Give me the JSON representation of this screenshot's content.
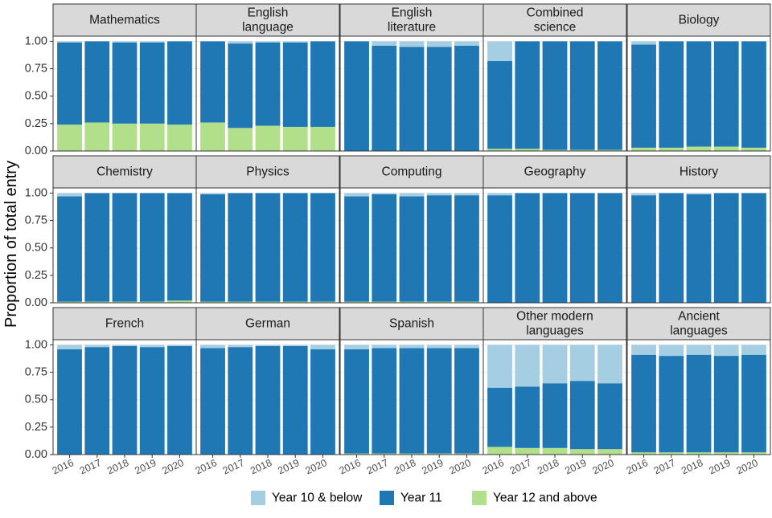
{
  "chart_data": {
    "type": "bar",
    "stacked": true,
    "facet_columns": 5,
    "ylabel": "Proportion of total entry",
    "xlabel": "",
    "ylim": [
      0,
      1
    ],
    "yticks": [
      "0.00",
      "0.25",
      "0.50",
      "0.75",
      "1.00"
    ],
    "ytick_values": [
      0,
      0.25,
      0.5,
      0.75,
      1
    ],
    "categories": [
      "2016",
      "2017",
      "2018",
      "2019",
      "2020"
    ],
    "legend": {
      "position": "bottom",
      "items": [
        {
          "name": "Year 10 & below",
          "color": "#a6cee3"
        },
        {
          "name": "Year 11",
          "color": "#1f78b4"
        },
        {
          "name": "Year 12 and above",
          "color": "#b2df8a"
        }
      ]
    },
    "stack_order_bottom_to_top": [
      "Year 12 and above",
      "Year 11",
      "Year 10 & below"
    ],
    "panels": [
      {
        "title": [
          "Mathematics"
        ],
        "series": {
          "Year 12 and above": [
            0.24,
            0.26,
            0.25,
            0.25,
            0.24
          ],
          "Year 11": [
            0.75,
            0.74,
            0.74,
            0.74,
            0.76
          ],
          "Year 10 & below": [
            0.01,
            0.0,
            0.01,
            0.01,
            0.0
          ]
        }
      },
      {
        "title": [
          "English",
          "language"
        ],
        "series": {
          "Year 12 and above": [
            0.26,
            0.21,
            0.23,
            0.22,
            0.22
          ],
          "Year 11": [
            0.74,
            0.77,
            0.76,
            0.77,
            0.78
          ],
          "Year 10 & below": [
            0.0,
            0.02,
            0.01,
            0.01,
            0.0
          ]
        }
      },
      {
        "title": [
          "English",
          "literature"
        ],
        "series": {
          "Year 12 and above": [
            0.0,
            0.0,
            0.0,
            0.0,
            0.0
          ],
          "Year 11": [
            1.0,
            0.96,
            0.95,
            0.95,
            0.96
          ],
          "Year 10 & below": [
            0.0,
            0.04,
            0.05,
            0.05,
            0.04
          ]
        }
      },
      {
        "title": [
          "Combined",
          "science"
        ],
        "series": {
          "Year 12 and above": [
            0.02,
            0.02,
            0.01,
            0.01,
            0.01
          ],
          "Year 11": [
            0.8,
            0.98,
            0.99,
            0.99,
            0.99
          ],
          "Year 10 & below": [
            0.18,
            0.0,
            0.0,
            0.0,
            0.0
          ]
        }
      },
      {
        "title": [
          "Biology"
        ],
        "series": {
          "Year 12 and above": [
            0.03,
            0.03,
            0.04,
            0.04,
            0.03
          ],
          "Year 11": [
            0.94,
            0.97,
            0.96,
            0.96,
            0.97
          ],
          "Year 10 & below": [
            0.03,
            0.0,
            0.0,
            0.0,
            0.0
          ]
        }
      },
      {
        "title": [
          "Chemistry"
        ],
        "series": {
          "Year 12 and above": [
            0.01,
            0.01,
            0.01,
            0.01,
            0.02
          ],
          "Year 11": [
            0.96,
            0.99,
            0.99,
            0.99,
            0.98
          ],
          "Year 10 & below": [
            0.03,
            0.0,
            0.0,
            0.0,
            0.0
          ]
        }
      },
      {
        "title": [
          "Physics"
        ],
        "series": {
          "Year 12 and above": [
            0.01,
            0.01,
            0.01,
            0.01,
            0.01
          ],
          "Year 11": [
            0.98,
            0.99,
            0.99,
            0.99,
            0.99
          ],
          "Year 10 & below": [
            0.01,
            0.0,
            0.0,
            0.0,
            0.0
          ]
        }
      },
      {
        "title": [
          "Computing"
        ],
        "series": {
          "Year 12 and above": [
            0.01,
            0.01,
            0.01,
            0.01,
            0.01
          ],
          "Year 11": [
            0.96,
            0.98,
            0.96,
            0.97,
            0.97
          ],
          "Year 10 & below": [
            0.03,
            0.01,
            0.03,
            0.02,
            0.02
          ]
        }
      },
      {
        "title": [
          "Geography"
        ],
        "series": {
          "Year 12 and above": [
            0.0,
            0.0,
            0.0,
            0.0,
            0.0
          ],
          "Year 11": [
            0.98,
            1.0,
            1.0,
            1.0,
            1.0
          ],
          "Year 10 & below": [
            0.02,
            0.0,
            0.0,
            0.0,
            0.0
          ]
        }
      },
      {
        "title": [
          "History"
        ],
        "series": {
          "Year 12 and above": [
            0.0,
            0.0,
            0.0,
            0.0,
            0.0
          ],
          "Year 11": [
            0.98,
            1.0,
            0.99,
            1.0,
            1.0
          ],
          "Year 10 & below": [
            0.02,
            0.0,
            0.01,
            0.0,
            0.0
          ]
        }
      },
      {
        "title": [
          "French"
        ],
        "series": {
          "Year 12 and above": [
            0.0,
            0.0,
            0.0,
            0.0,
            0.0
          ],
          "Year 11": [
            0.96,
            0.98,
            0.99,
            0.98,
            0.99
          ],
          "Year 10 & below": [
            0.04,
            0.02,
            0.01,
            0.02,
            0.01
          ]
        }
      },
      {
        "title": [
          "German"
        ],
        "series": {
          "Year 12 and above": [
            0.0,
            0.0,
            0.0,
            0.0,
            0.0
          ],
          "Year 11": [
            0.97,
            0.98,
            0.99,
            0.99,
            0.96
          ],
          "Year 10 & below": [
            0.03,
            0.02,
            0.01,
            0.01,
            0.04
          ]
        }
      },
      {
        "title": [
          "Spanish"
        ],
        "series": {
          "Year 12 and above": [
            0.01,
            0.01,
            0.01,
            0.01,
            0.01
          ],
          "Year 11": [
            0.95,
            0.96,
            0.96,
            0.96,
            0.96
          ],
          "Year 10 & below": [
            0.04,
            0.03,
            0.03,
            0.03,
            0.03
          ]
        }
      },
      {
        "title": [
          "Other modern",
          "languages"
        ],
        "series": {
          "Year 12 and above": [
            0.07,
            0.06,
            0.06,
            0.05,
            0.05
          ],
          "Year 11": [
            0.54,
            0.56,
            0.59,
            0.62,
            0.6
          ],
          "Year 10 & below": [
            0.39,
            0.38,
            0.35,
            0.33,
            0.35
          ]
        }
      },
      {
        "title": [
          "Ancient",
          "languages"
        ],
        "series": {
          "Year 12 and above": [
            0.02,
            0.02,
            0.02,
            0.02,
            0.02
          ],
          "Year 11": [
            0.89,
            0.88,
            0.89,
            0.88,
            0.89
          ],
          "Year 10 & below": [
            0.09,
            0.1,
            0.09,
            0.1,
            0.09
          ]
        }
      }
    ]
  }
}
